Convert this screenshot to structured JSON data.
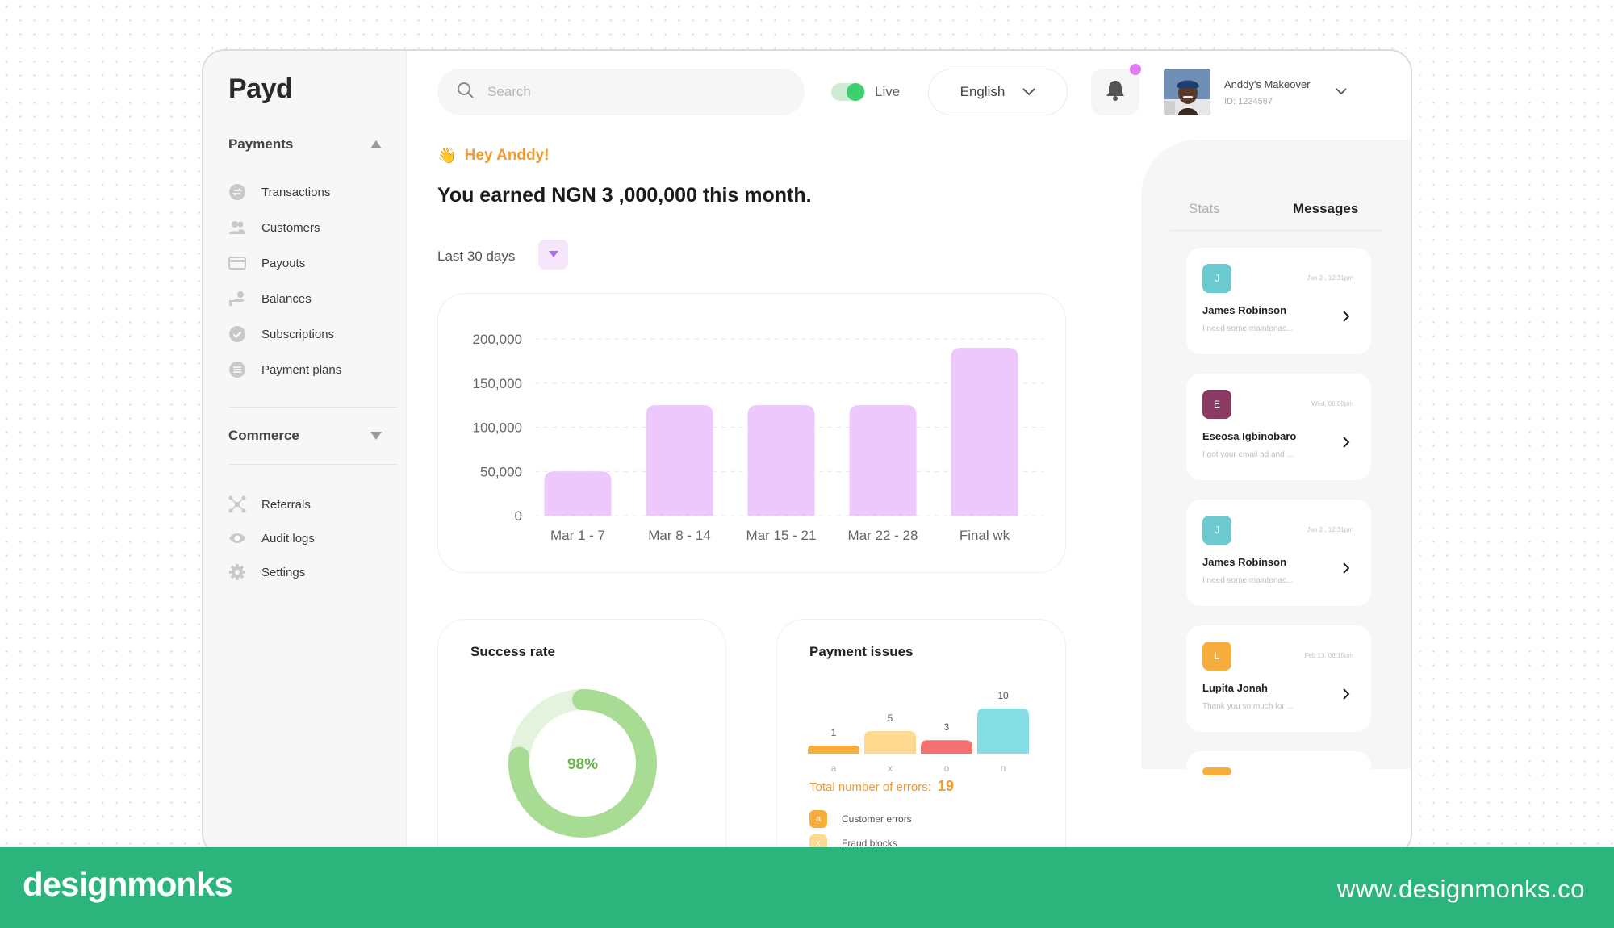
{
  "app": {
    "logo": "Payd"
  },
  "sidebar": {
    "payments_label": "Payments",
    "payments_items": [
      {
        "label": "Transactions",
        "icon": "transactions-icon"
      },
      {
        "label": "Customers",
        "icon": "customers-icon"
      },
      {
        "label": "Payouts",
        "icon": "card-icon"
      },
      {
        "label": "Balances",
        "icon": "balances-icon"
      },
      {
        "label": "Subscriptions",
        "icon": "check-circle-icon"
      },
      {
        "label": "Payment plans",
        "icon": "list-icon"
      }
    ],
    "commerce_label": "Commerce",
    "other_items": [
      {
        "label": "Referrals",
        "icon": "network-icon"
      },
      {
        "label": "Audit logs",
        "icon": "eye-icon"
      },
      {
        "label": "Settings",
        "icon": "gear-icon"
      }
    ]
  },
  "topbar": {
    "search_placeholder": "Search",
    "live_label": "Live",
    "live_on": true,
    "language": "English",
    "profile_name": "Anddy's Makeover",
    "profile_id": "ID: 1234567"
  },
  "main": {
    "greeting_emoji": "👋",
    "greeting": "Hey Anddy!",
    "earned": "You earned NGN 3 ,000,000 this month.",
    "period": "Last 30 days"
  },
  "chart_data": [
    {
      "type": "bar",
      "categories": [
        "Mar 1 - 7",
        "Mar 8 - 14",
        "Mar 15 - 21",
        "Mar 22 - 28",
        "Final wk"
      ],
      "values": [
        50000,
        125000,
        125000,
        125000,
        190000
      ],
      "ylim": [
        0,
        200000
      ],
      "yticks": [
        "0",
        "50,000",
        "100,000",
        "150,000",
        "200,000"
      ],
      "grid": true,
      "color": "#ecc8fc"
    },
    {
      "type": "pie",
      "title": "Success rate",
      "values": [
        98,
        2
      ],
      "center_label": "98%",
      "colors": [
        "#a8dc94",
        "#e4f3de"
      ]
    },
    {
      "type": "bar",
      "title": "Payment issues",
      "categories": [
        "a",
        "x",
        "o",
        "n"
      ],
      "values": [
        1,
        5,
        3,
        10
      ],
      "colors": [
        "#f6ad3b",
        "#ffd98f",
        "#f47272",
        "#84dde3"
      ]
    }
  ],
  "issues": {
    "total_label": "Total number of errors:",
    "total": "19",
    "legend": [
      {
        "key": "a",
        "label": "Customer errors",
        "color": "#f6ad3b"
      },
      {
        "key": "x",
        "label": "Fraud blocks",
        "color": "#ffd98f"
      }
    ]
  },
  "rpanel": {
    "tab_stats": "Stats",
    "tab_messages": "Messages",
    "messages": [
      {
        "initial": "J",
        "color": "#6cc9cf",
        "time": "Jan 2 , 12:31pm",
        "name": "James Robinson",
        "preview": "I need some maintenac..."
      },
      {
        "initial": "E",
        "color": "#8a3a63",
        "time": "Wed, 06:00pm",
        "name": "Eseosa Igbinobaro",
        "preview": "I got your email ad and ..."
      },
      {
        "initial": "J",
        "color": "#6cc9cf",
        "time": "Jan 2 , 12:31pm",
        "name": "James Robinson",
        "preview": "I need some maintenac..."
      },
      {
        "initial": "L",
        "color": "#f6ad3b",
        "time": "Feb 13, 06:15pm",
        "name": "Lupita Jonah",
        "preview": "Thank you so much for ..."
      }
    ]
  },
  "footer": {
    "brand": "designmonks",
    "site": "www.designmonks.co"
  }
}
